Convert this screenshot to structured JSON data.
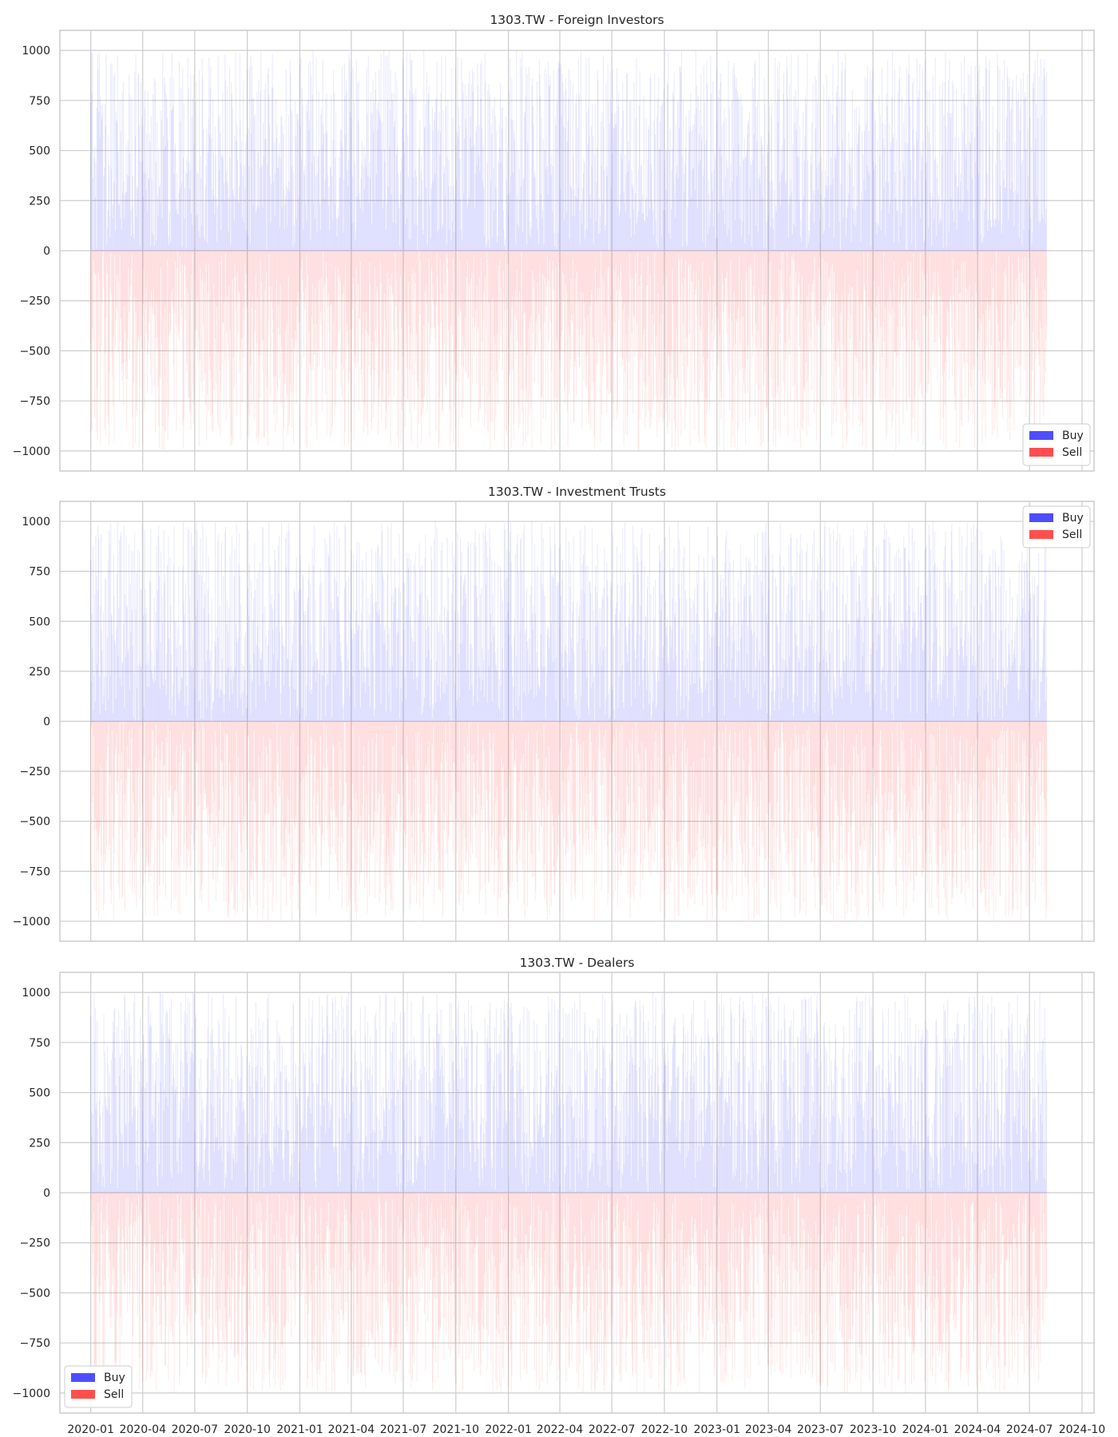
{
  "chart_data": [
    {
      "type": "bar",
      "title": "1303.TW - Foreign Investors",
      "xlabel": "",
      "ylabel": "",
      "ylim": [
        -1100,
        1100
      ],
      "yticks": [
        1000,
        750,
        500,
        250,
        0,
        -250,
        -500,
        -750,
        -1000
      ],
      "x_range": [
        "2019-11-08",
        "2024-10-22"
      ],
      "data_range": [
        "2020-01-01",
        "2024-07-31"
      ],
      "grid": true,
      "legend": "lower right",
      "series": [
        {
          "name": "Buy",
          "color": "#4444ff",
          "value_range": [
            0,
            1000
          ],
          "note_values": "daily random values between 0 and 1000"
        },
        {
          "name": "Sell",
          "color": "#ff4444",
          "value_range": [
            -1000,
            0
          ]
        }
      ]
    },
    {
      "type": "bar",
      "title": "1303.TW - Investment Trusts",
      "xlabel": "",
      "ylabel": "",
      "ylim": [
        -1100,
        1100
      ],
      "yticks": [
        1000,
        750,
        500,
        250,
        0,
        -250,
        -500,
        -750,
        -1000
      ],
      "x_range": [
        "2019-11-08",
        "2024-10-22"
      ],
      "data_range": [
        "2020-01-01",
        "2024-07-31"
      ],
      "grid": true,
      "legend": "upper right",
      "series": [
        {
          "name": "Buy",
          "color": "#4444ff",
          "value_range": [
            0,
            1000
          ]
        },
        {
          "name": "Sell",
          "color": "#ff4444",
          "value_range": [
            -1000,
            0
          ]
        }
      ]
    },
    {
      "type": "bar",
      "title": "1303.TW - Dealers",
      "xlabel": "",
      "ylabel": "",
      "ylim": [
        -1100,
        1100
      ],
      "yticks": [
        1000,
        750,
        500,
        250,
        0,
        -250,
        -500,
        -750,
        -1000
      ],
      "x_range": [
        "2019-11-08",
        "2024-10-22"
      ],
      "data_range": [
        "2020-01-01",
        "2024-07-31"
      ],
      "grid": true,
      "legend": "lower left",
      "series": [
        {
          "name": "Buy",
          "color": "#4444ff",
          "value_range": [
            0,
            1000
          ]
        },
        {
          "name": "Sell",
          "color": "#ff4444",
          "value_range": [
            -1000,
            0
          ]
        }
      ]
    }
  ],
  "x_ticks": [
    "2020-01",
    "2020-04",
    "2020-07",
    "2020-10",
    "2021-01",
    "2021-04",
    "2021-07",
    "2021-10",
    "2022-01",
    "2022-04",
    "2022-07",
    "2022-10",
    "2023-01",
    "2023-04",
    "2023-07",
    "2023-10",
    "2024-01",
    "2024-04",
    "2024-07",
    "2024-10"
  ],
  "colors": {
    "buy": "#4444ff",
    "sell": "#ff4444",
    "grid": "#cccccc",
    "frame": "#cccccc",
    "text": "#262626"
  }
}
